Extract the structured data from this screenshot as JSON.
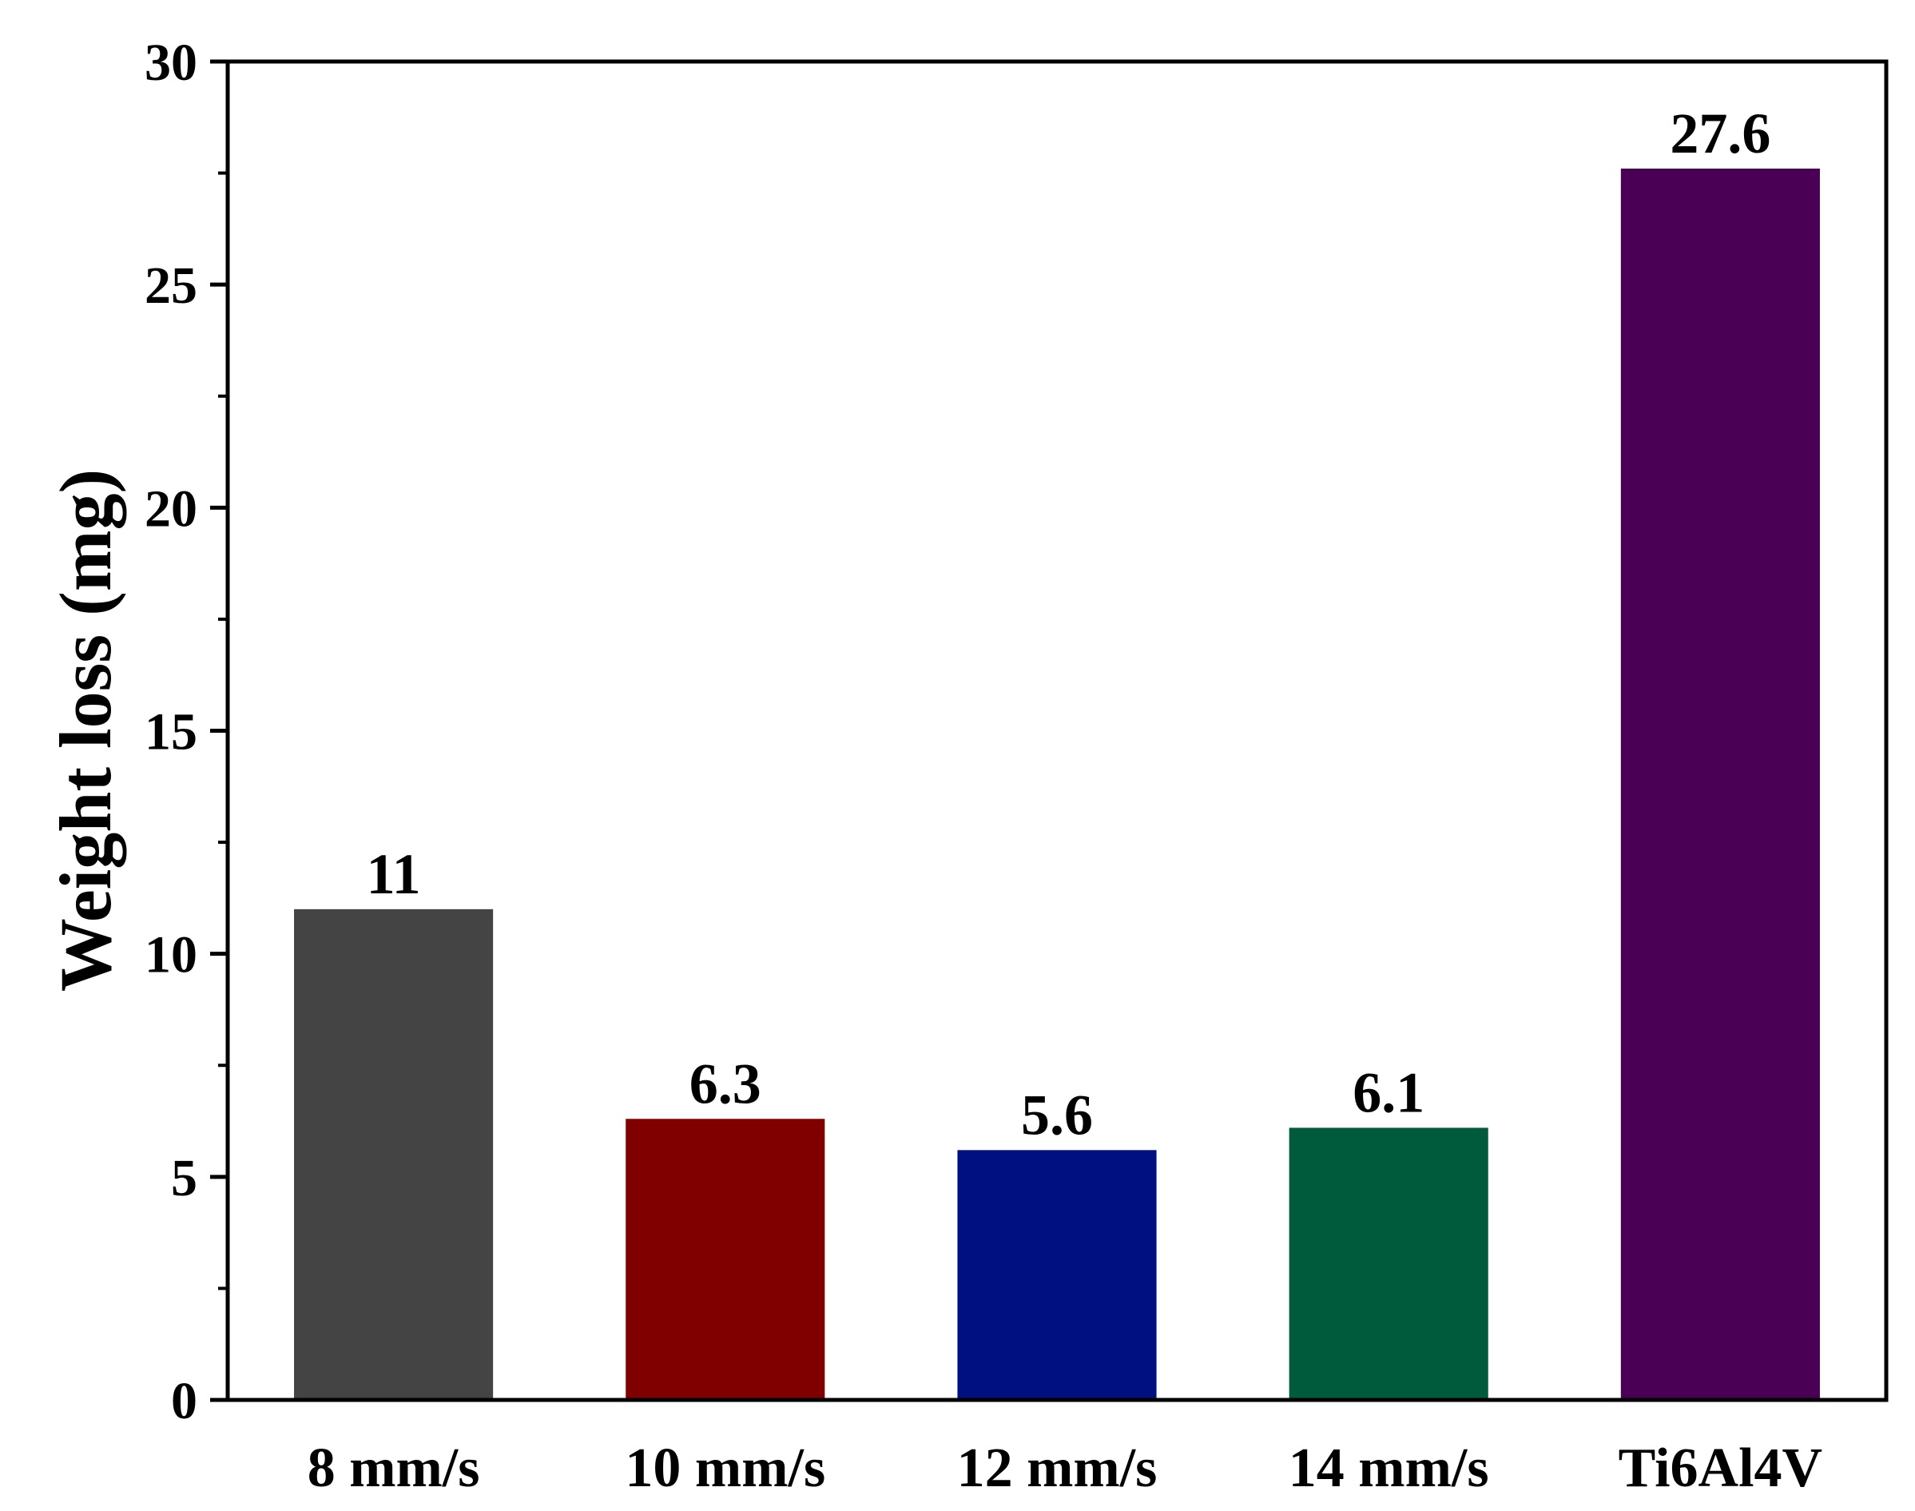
{
  "chart_data": {
    "type": "bar",
    "title": "",
    "xlabel": "",
    "ylabel": "Weight loss (mg)",
    "categories": [
      "8 mm/s",
      "10 mm/s",
      "12 mm/s",
      "14 mm/s",
      "Ti6Al4V"
    ],
    "values": [
      11,
      6.3,
      5.6,
      6.1,
      27.6
    ],
    "value_labels": [
      "11",
      "6.3",
      "5.6",
      "6.1",
      "27.6"
    ],
    "bar_colors": [
      "#444444",
      "#800000",
      "#001080",
      "#005a3c",
      "#4a0055"
    ],
    "ylim": [
      0,
      30
    ],
    "yticks": [
      0,
      5,
      10,
      15,
      20,
      25,
      30
    ],
    "ytick_labels": [
      "0",
      "5",
      "10",
      "15",
      "20",
      "25",
      "30"
    ],
    "minor_ytick_step": 2.5,
    "grid": false,
    "legend": "none"
  }
}
